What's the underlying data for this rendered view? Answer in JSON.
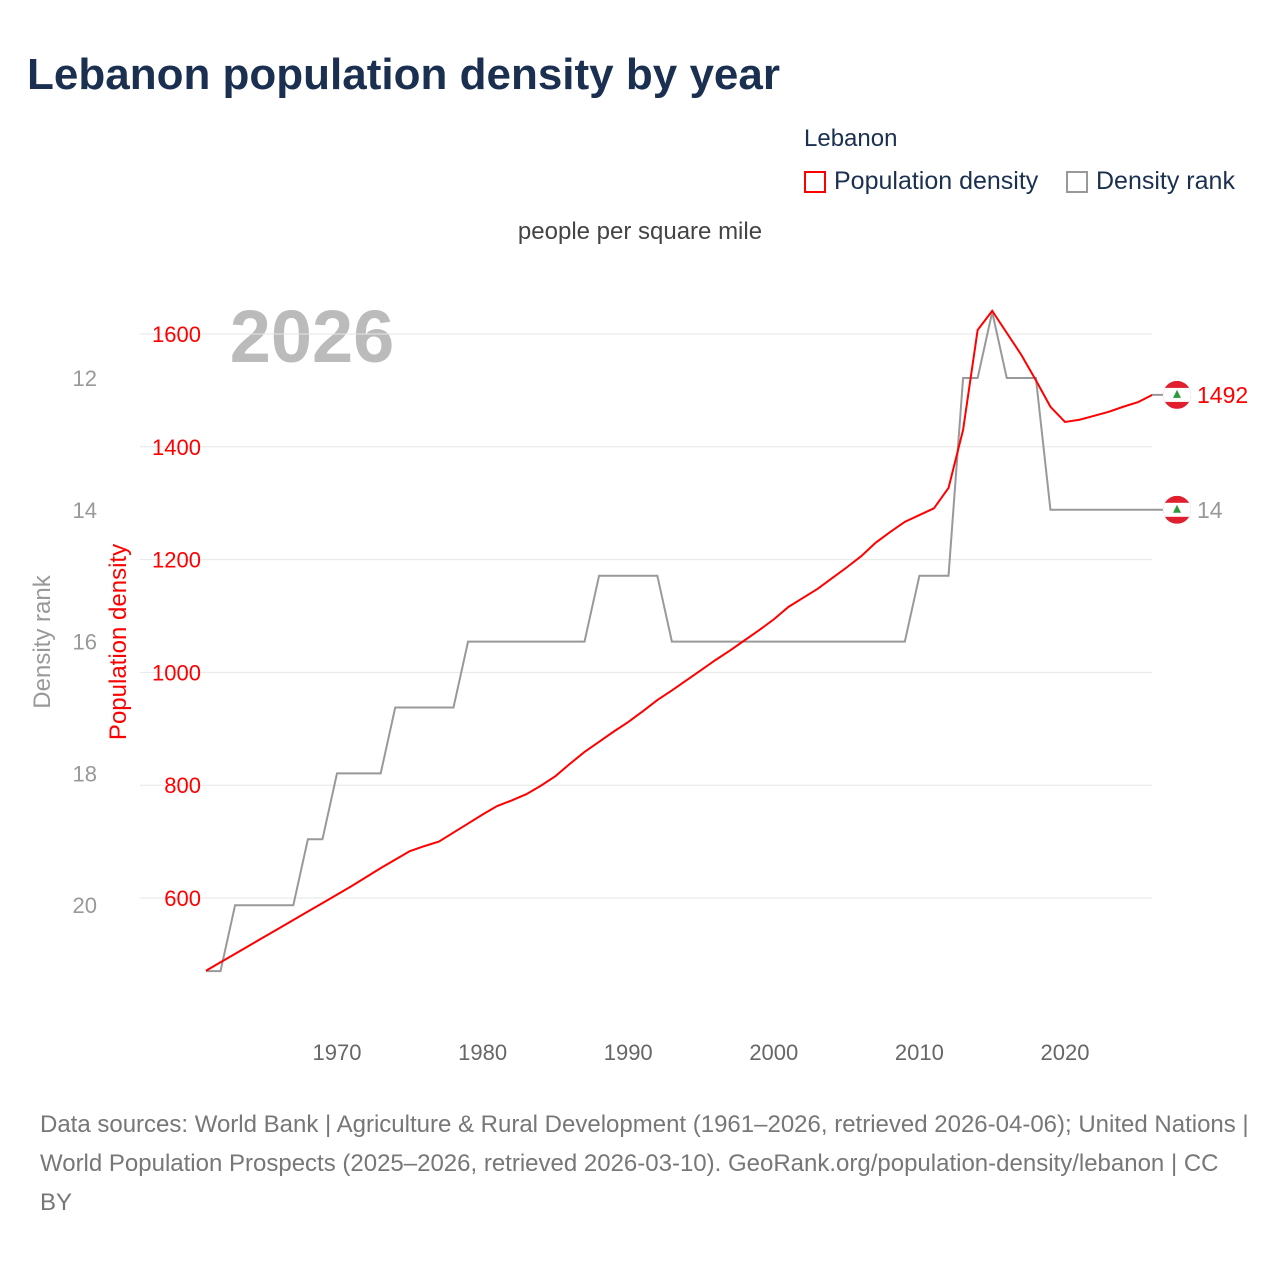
{
  "title": "Lebanon population density by year",
  "legend": {
    "title": "Lebanon",
    "items": [
      {
        "label": "Population density",
        "color": "#ff0000"
      },
      {
        "label": "Density rank",
        "color": "#999999"
      }
    ]
  },
  "unit_label": "people per square mile",
  "source": "Data sources: World Bank | Agriculture & Rural Development (1961–2026, retrieved 2026-04-06); United Nations | World Population Prospects (2025–2026, retrieved 2026-03-10). GeoRank.org/population-density/lebanon | CC BY",
  "chart_data": {
    "type": "line",
    "title": "Lebanon population density by year",
    "year_label": "2026",
    "x": [
      1961,
      1962,
      1963,
      1964,
      1965,
      1966,
      1967,
      1968,
      1969,
      1970,
      1971,
      1972,
      1973,
      1974,
      1975,
      1976,
      1977,
      1978,
      1979,
      1980,
      1981,
      1982,
      1983,
      1984,
      1985,
      1986,
      1987,
      1988,
      1989,
      1990,
      1991,
      1992,
      1993,
      1994,
      1995,
      1996,
      1997,
      1998,
      1999,
      2000,
      2001,
      2002,
      2003,
      2004,
      2005,
      2006,
      2007,
      2008,
      2009,
      2010,
      2011,
      2012,
      2013,
      2014,
      2015,
      2016,
      2017,
      2018,
      2019,
      2020,
      2021,
      2022,
      2023,
      2024,
      2025,
      2026
    ],
    "xticks": [
      1970,
      1980,
      1990,
      2000,
      2010,
      2020
    ],
    "xlim": [
      1961,
      2026
    ],
    "series": [
      {
        "name": "Population density",
        "axis": "left",
        "ylabel": "Population density",
        "color": "#ff0000",
        "ylim": [
          470,
          1650
        ],
        "yticks": [
          600,
          800,
          1000,
          1200,
          1400,
          1600
        ],
        "values": [
          471,
          486,
          501,
          516,
          531,
          546,
          561,
          576,
          591,
          606,
          621,
          637,
          653,
          668,
          683,
          692,
          700,
          716,
          732,
          748,
          763,
          773,
          784,
          799,
          816,
          838,
          859,
          877,
          895,
          912,
          931,
          951,
          968,
          986,
          1004,
          1022,
          1039,
          1057,
          1075,
          1094,
          1116,
          1132,
          1148,
          1167,
          1186,
          1206,
          1230,
          1249,
          1267,
          1279,
          1291,
          1327,
          1430,
          1607,
          1641,
          1602,
          1563,
          1518,
          1471,
          1444,
          1448,
          1455,
          1462,
          1471,
          1479,
          1492
        ],
        "end_label": "1492"
      },
      {
        "name": "Density rank",
        "axis": "left-outer",
        "ylabel": "Density rank",
        "color": "#999999",
        "ylim": [
          11,
          21
        ],
        "yticks": [
          12,
          14,
          16,
          18,
          20
        ],
        "values": [
          21,
          21,
          20,
          20,
          20,
          20,
          20,
          19,
          19,
          18,
          18,
          18,
          18,
          17,
          17,
          17,
          17,
          17,
          16,
          16,
          16,
          16,
          16,
          16,
          16,
          16,
          16,
          15,
          15,
          15,
          15,
          15,
          16,
          16,
          16,
          16,
          16,
          16,
          16,
          16,
          16,
          16,
          16,
          16,
          16,
          16,
          16,
          16,
          16,
          15,
          15,
          15,
          12,
          12,
          11,
          12,
          12,
          12,
          14,
          14,
          14,
          14,
          14,
          14,
          14,
          14
        ],
        "end_label": "14"
      }
    ],
    "grid": true
  }
}
